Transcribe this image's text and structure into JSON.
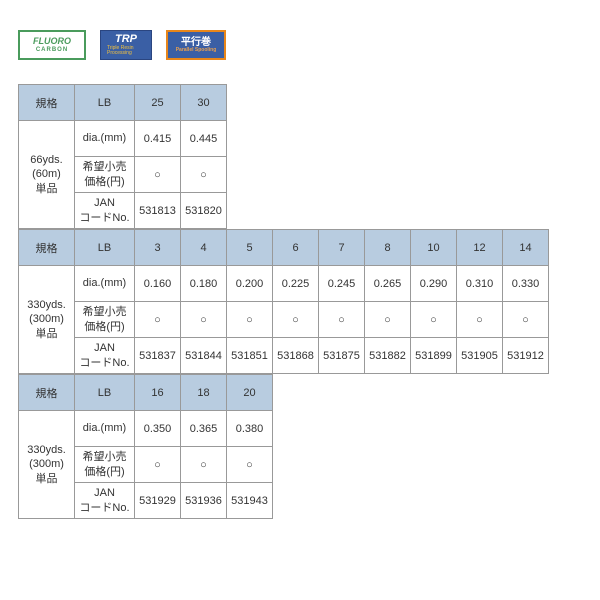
{
  "colors": {
    "header_bg": "#b8cce0",
    "border": "#999999",
    "text": "#333333",
    "fluoro_green": "#4a9b5c",
    "trp_blue": "#3a5fa5",
    "ps_orange": "#e8861a"
  },
  "badges": {
    "fluoro": {
      "main": "FLUORO",
      "sub": "CARBON"
    },
    "trp": {
      "main": "TRP",
      "sub": "Triple Resin Processing"
    },
    "ps": {
      "main": "平行巻",
      "sub": "Parallel Spooling"
    }
  },
  "row_labels": {
    "spec": "規格",
    "lb": "LB",
    "dia": "dia.(mm)",
    "price1": "希望小売",
    "price2": "価格(円)",
    "jan1": "JAN",
    "jan2": "コードNo."
  },
  "mark": "○",
  "blocks": [
    {
      "left_label": "66yds.\n(60m)\n単品",
      "lb": [
        "25",
        "30"
      ],
      "dia": [
        "0.415",
        "0.445"
      ],
      "price": [
        "○",
        "○"
      ],
      "jan": [
        "531813",
        "531820"
      ]
    },
    {
      "left_label": "330yds.\n(300m)\n単品",
      "lb": [
        "3",
        "4",
        "5",
        "6",
        "7",
        "8",
        "10",
        "12",
        "14"
      ],
      "dia": [
        "0.160",
        "0.180",
        "0.200",
        "0.225",
        "0.245",
        "0.265",
        "0.290",
        "0.310",
        "0.330"
      ],
      "price": [
        "○",
        "○",
        "○",
        "○",
        "○",
        "○",
        "○",
        "○",
        "○"
      ],
      "jan": [
        "531837",
        "531844",
        "531851",
        "531868",
        "531875",
        "531882",
        "531899",
        "531905",
        "531912"
      ]
    },
    {
      "left_label": "330yds.\n(300m)\n単品",
      "lb": [
        "16",
        "18",
        "20"
      ],
      "dia": [
        "0.350",
        "0.365",
        "0.380"
      ],
      "price": [
        "○",
        "○",
        "○"
      ],
      "jan": [
        "531929",
        "531936",
        "531943"
      ]
    }
  ]
}
